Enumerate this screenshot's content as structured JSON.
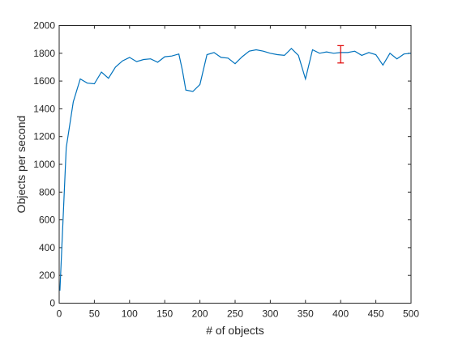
{
  "chart_data": {
    "type": "line",
    "title": "",
    "xlabel": "# of objects",
    "ylabel": "Objects per second",
    "xlim": [
      0,
      500
    ],
    "ylim": [
      0,
      2000
    ],
    "x_ticks": [
      0,
      50,
      100,
      150,
      200,
      250,
      300,
      350,
      400,
      450,
      500
    ],
    "y_ticks": [
      0,
      200,
      400,
      600,
      800,
      1000,
      1200,
      1400,
      1600,
      1800,
      2000
    ],
    "grid": false,
    "series": [
      {
        "color": "#0072BD",
        "x": [
          1,
          10,
          20,
          30,
          40,
          50,
          60,
          70,
          80,
          90,
          100,
          110,
          120,
          130,
          140,
          150,
          160,
          170,
          175,
          180,
          190,
          200,
          210,
          220,
          230,
          240,
          250,
          260,
          270,
          280,
          290,
          300,
          310,
          320,
          330,
          340,
          350,
          360,
          370,
          380,
          390,
          400,
          410,
          420,
          430,
          440,
          450,
          460,
          470,
          480,
          490,
          500
        ],
        "y": [
          90,
          1120,
          1450,
          1615,
          1585,
          1580,
          1665,
          1620,
          1700,
          1745,
          1770,
          1740,
          1755,
          1760,
          1735,
          1775,
          1780,
          1795,
          1680,
          1535,
          1525,
          1575,
          1790,
          1805,
          1770,
          1765,
          1725,
          1775,
          1815,
          1825,
          1815,
          1800,
          1790,
          1785,
          1835,
          1785,
          1615,
          1825,
          1800,
          1810,
          1800,
          1805,
          1805,
          1815,
          1785,
          1805,
          1790,
          1715,
          1800,
          1760,
          1795,
          1800
        ]
      }
    ],
    "error_bar": {
      "x": 400,
      "y": 1795,
      "low": 1730,
      "high": 1855,
      "color": "#e00000"
    }
  }
}
